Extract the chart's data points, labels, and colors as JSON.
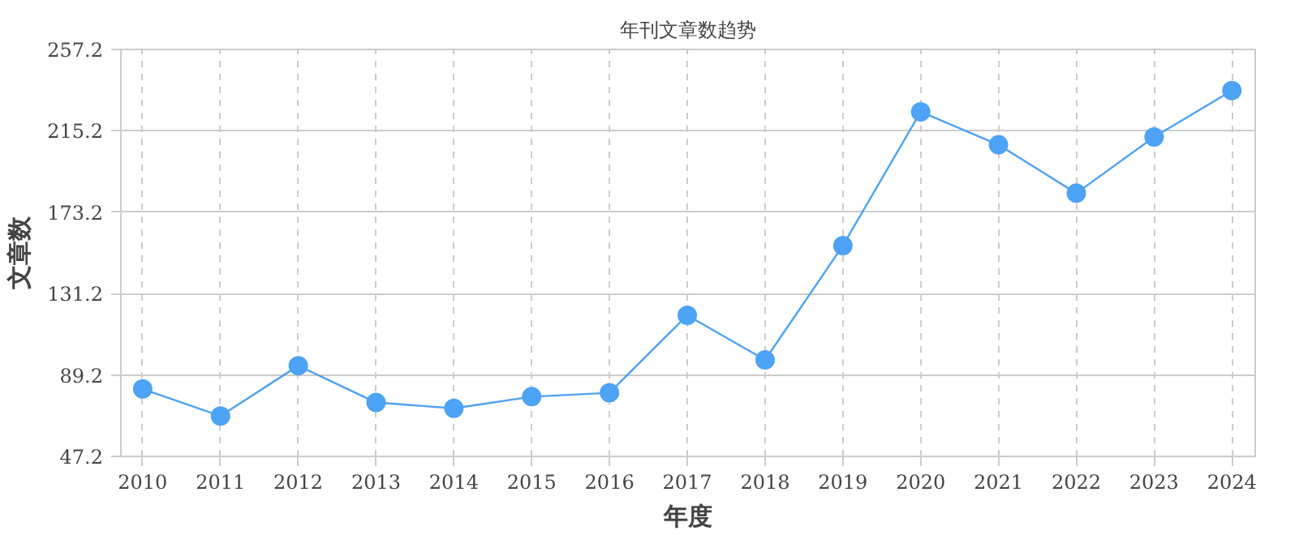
{
  "chart_data": {
    "type": "line",
    "title": "年刊文章数趋势",
    "xlabel": "年度",
    "ylabel": "文章数",
    "categories": [
      "2010",
      "2011",
      "2012",
      "2013",
      "2014",
      "2015",
      "2016",
      "2017",
      "2018",
      "2019",
      "2020",
      "2021",
      "2022",
      "2023",
      "2024"
    ],
    "series": [
      {
        "color": "#4da3f5",
        "values": [
          82,
          68,
          94,
          75,
          72,
          78,
          80,
          120,
          97,
          156,
          225,
          208,
          183,
          212,
          236
        ]
      }
    ],
    "ylim": [
      47.2,
      257.2
    ],
    "yticks": [
      47.2,
      89.2,
      131.2,
      173.2,
      215.2,
      257.2
    ],
    "grid": true,
    "marker": "circle",
    "line_style": "solid"
  }
}
